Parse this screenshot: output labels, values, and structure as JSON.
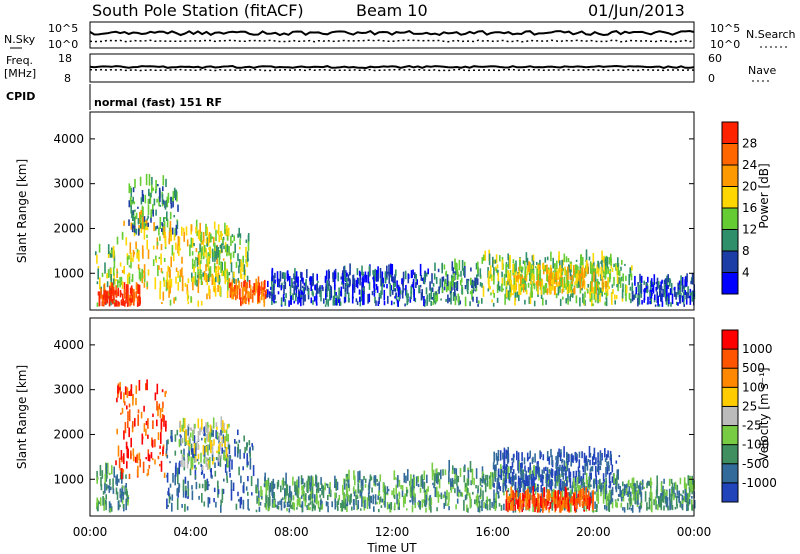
{
  "header": {
    "station": "South Pole Station (fitACF)",
    "beam": "Beam 10",
    "date": "01/Jun/2013"
  },
  "noise_panel": {
    "left_label": "N.Sky",
    "right_label": "N.Search",
    "ytick_top": "10^5",
    "ytick_bottom": "10^0"
  },
  "freq_panel": {
    "left_label_1": "Freq.",
    "left_label_2": "[MHz]",
    "right_label": "Nave",
    "left_ticks": [
      "18",
      "8"
    ],
    "right_ticks": [
      "60",
      "0"
    ]
  },
  "cpid": {
    "label": "CPID",
    "text": "normal (fast) 151 RF"
  },
  "chart_data": [
    {
      "type": "heatmap",
      "name": "power",
      "ylabel": "Slant Range [km]",
      "xlabel": "",
      "x_ticks": [
        "00:00",
        "04:00",
        "08:00",
        "12:00",
        "16:00",
        "20:00",
        "00:00"
      ],
      "xlim_hours": [
        0,
        24
      ],
      "ylim_km": [
        180,
        4600
      ],
      "y_ticks": [
        1000,
        2000,
        3000,
        4000
      ],
      "colorbar": {
        "label": "Power [dB]",
        "ticks": [
          "4",
          "8",
          "12",
          "16",
          "20",
          "24",
          "28"
        ],
        "colors": [
          "#0000ff",
          "#1c3da6",
          "#2f8f6b",
          "#66cc33",
          "#ffd700",
          "#ff9900",
          "#ff6600",
          "#ff2200"
        ]
      },
      "regions": [
        {
          "t0": 0.2,
          "t1": 1.0,
          "r0": 250,
          "r1": 1500,
          "v": 3
        },
        {
          "t0": 1.0,
          "t1": 2.3,
          "r0": 600,
          "r1": 2300,
          "v": 4
        },
        {
          "t0": 1.5,
          "t1": 3.5,
          "r0": 1800,
          "r1": 3000,
          "v": 2
        },
        {
          "t0": 2.5,
          "t1": 5.5,
          "r0": 250,
          "r1": 2000,
          "v": 4
        },
        {
          "t0": 4.0,
          "t1": 6.3,
          "r0": 700,
          "r1": 1900,
          "v": 3
        },
        {
          "t0": 5.5,
          "t1": 7.0,
          "r0": 250,
          "r1": 700,
          "v": 6
        },
        {
          "t0": 0.3,
          "t1": 2.0,
          "r0": 250,
          "r1": 550,
          "v": 7
        },
        {
          "t0": 7.0,
          "t1": 10.0,
          "r0": 250,
          "r1": 900,
          "v": 1
        },
        {
          "t0": 10.0,
          "t1": 13.5,
          "r0": 250,
          "r1": 1000,
          "v": 1
        },
        {
          "t0": 13.5,
          "t1": 15.5,
          "r0": 250,
          "r1": 1100,
          "v": 2
        },
        {
          "t0": 15.5,
          "t1": 21.5,
          "r0": 250,
          "r1": 1300,
          "v": 3
        },
        {
          "t0": 16.5,
          "t1": 20.5,
          "r0": 500,
          "r1": 1100,
          "v": 4
        },
        {
          "t0": 21.5,
          "t1": 24.0,
          "r0": 250,
          "r1": 800,
          "v": 1
        }
      ]
    },
    {
      "type": "heatmap",
      "name": "velocity",
      "ylabel": "Slant Range [km]",
      "xlabel": "Time UT",
      "x_ticks": [
        "00:00",
        "04:00",
        "08:00",
        "12:00",
        "16:00",
        "20:00",
        "00:00"
      ],
      "xlim_hours": [
        0,
        24
      ],
      "ylim_km": [
        180,
        4600
      ],
      "y_ticks": [
        1000,
        2000,
        3000,
        4000
      ],
      "colorbar": {
        "label": "Velocity [m s⁻¹]",
        "ticks": [
          "1000",
          "500",
          "100",
          "25",
          "-25",
          "-100",
          "-500",
          "-1000"
        ],
        "colors": [
          "#2244bb",
          "#336b9a",
          "#3f8f60",
          "#77cc44",
          "#bbbbbb",
          "#ffcc00",
          "#ff8800",
          "#ff5500",
          "#ff0000"
        ]
      },
      "regions": [
        {
          "t0": 0.2,
          "t1": 1.5,
          "r0": 250,
          "r1": 1200,
          "v": 2
        },
        {
          "t0": 1.0,
          "t1": 3.0,
          "r0": 1000,
          "r1": 3000,
          "v": 7
        },
        {
          "t0": 3.0,
          "t1": 6.5,
          "r0": 250,
          "r1": 2000,
          "v": 1
        },
        {
          "t0": 3.5,
          "t1": 5.5,
          "r0": 1200,
          "r1": 2200,
          "v": 4
        },
        {
          "t0": 6.5,
          "t1": 10.0,
          "r0": 250,
          "r1": 900,
          "v": 2
        },
        {
          "t0": 10.0,
          "t1": 13.5,
          "r0": 250,
          "r1": 1000,
          "v": 2
        },
        {
          "t0": 13.5,
          "t1": 19.0,
          "r0": 250,
          "r1": 1200,
          "v": 2
        },
        {
          "t0": 16.0,
          "t1": 21.0,
          "r0": 700,
          "r1": 1500,
          "v": 0
        },
        {
          "t0": 19.0,
          "t1": 24.0,
          "r0": 250,
          "r1": 900,
          "v": 2
        },
        {
          "t0": 16.5,
          "t1": 20.0,
          "r0": 250,
          "r1": 600,
          "v": 7
        }
      ]
    }
  ]
}
